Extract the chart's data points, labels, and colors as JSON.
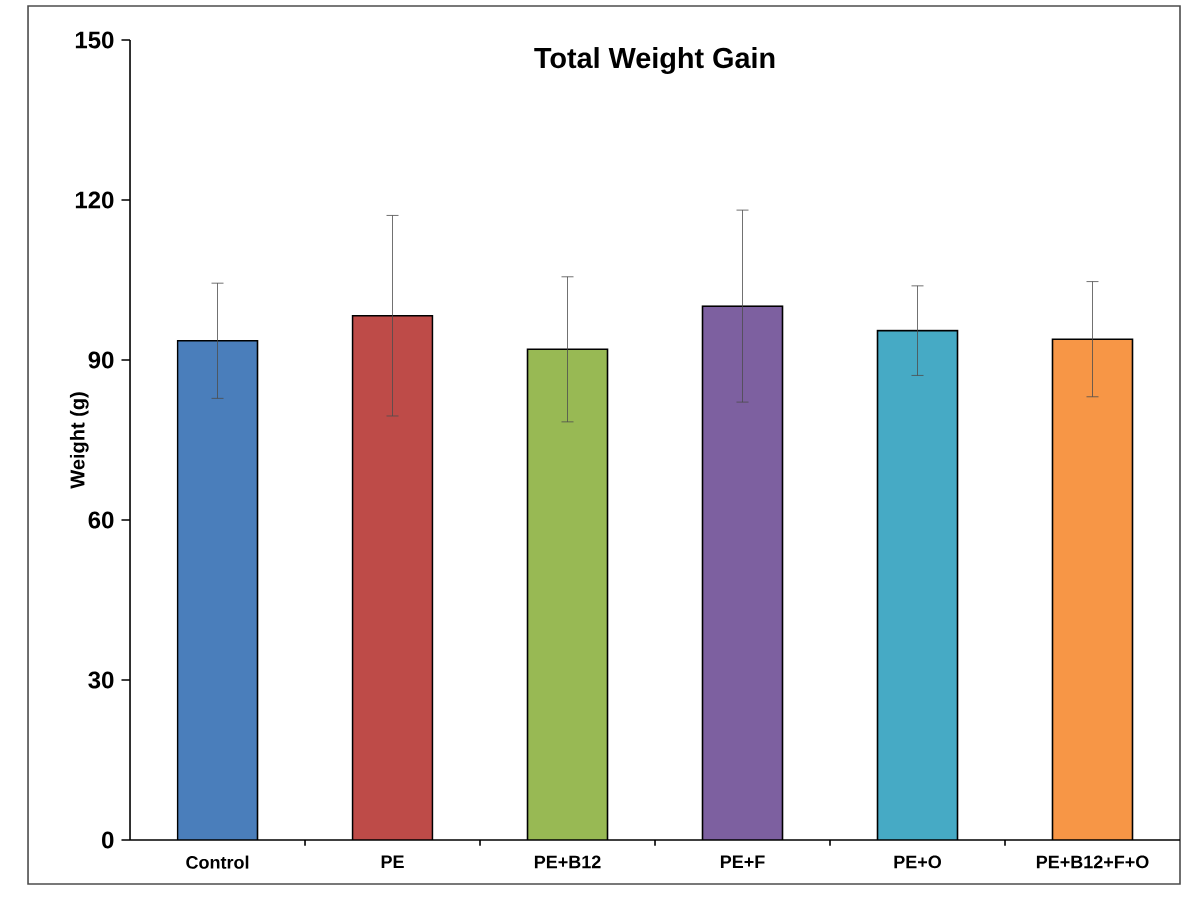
{
  "chart_data": {
    "type": "bar",
    "title": "Total Weight Gain",
    "ylabel": "Weight (g)",
    "categories": [
      "Control",
      "PE",
      "PE+B12",
      "PE+F",
      "PE+O",
      "PE+B12+F+O"
    ],
    "values": [
      93.6,
      98.3,
      92.0,
      100.1,
      95.5,
      93.9
    ],
    "errors": [
      10.8,
      18.8,
      13.6,
      18.0,
      8.4,
      10.8
    ],
    "colors": [
      "#4a7ebb",
      "#be4b48",
      "#98b954",
      "#7d60a0",
      "#46aac5",
      "#f79646"
    ],
    "ylim": [
      0,
      150
    ],
    "yticks": [
      0,
      30,
      60,
      90,
      120,
      150
    ],
    "grid": false,
    "legend": false
  }
}
